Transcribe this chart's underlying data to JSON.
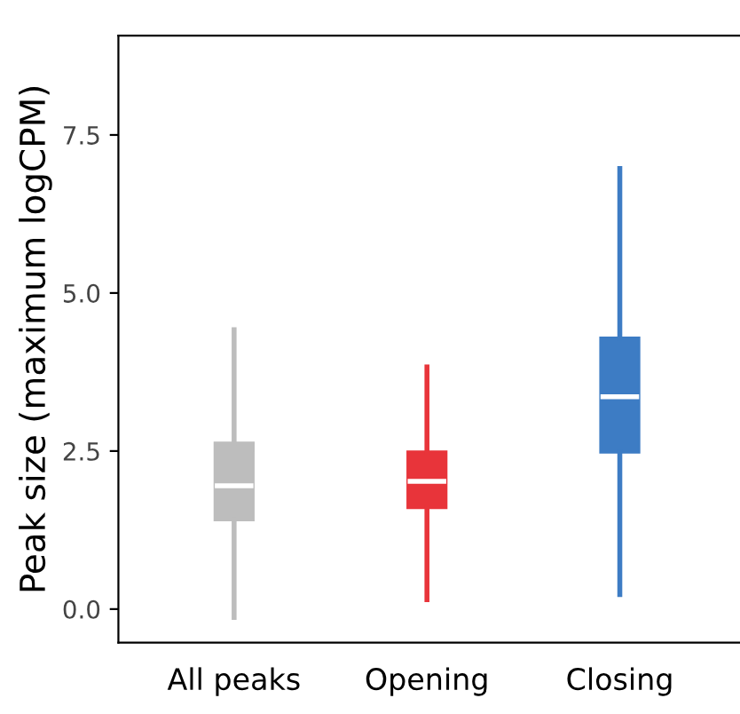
{
  "chart_data": {
    "type": "box",
    "ylabel": "Peak size (maximum logCPM)",
    "categories": [
      "All peaks",
      "Opening",
      "Closing"
    ],
    "boxes": [
      {
        "low": -0.13,
        "q1": 1.41,
        "median": 1.95,
        "q3": 2.63,
        "high": 4.42
      },
      {
        "low": 0.15,
        "q1": 1.6,
        "median": 2.02,
        "q3": 2.49,
        "high": 3.83
      },
      {
        "low": 0.23,
        "q1": 2.48,
        "median": 3.36,
        "q3": 4.29,
        "high": 6.97
      }
    ],
    "colors": [
      "#bdbdbd",
      "#e8343a",
      "#3d7cc4"
    ],
    "ylim": [
      -0.53,
      9.07
    ],
    "yticks": [
      {
        "value": 0,
        "label": "0.0"
      },
      {
        "value": 2.5,
        "label": "2.5"
      },
      {
        "value": 5,
        "label": "5.0"
      },
      {
        "value": 7.5,
        "label": "7.5"
      }
    ],
    "grid": false
  }
}
